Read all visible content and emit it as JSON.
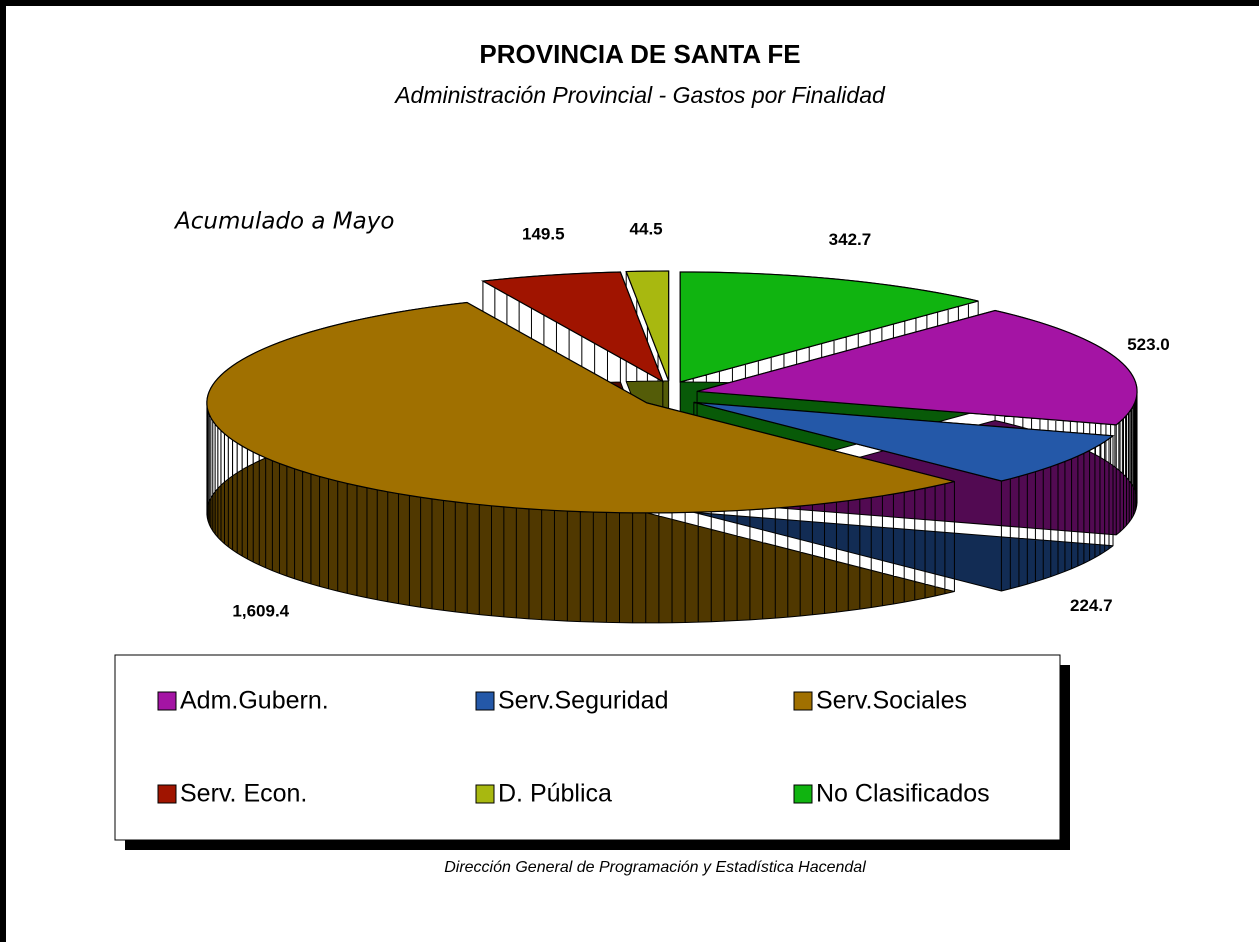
{
  "chart_data": {
    "type": "pie",
    "title": "PROVINCIA DE SANTA FE",
    "subtitle": "Administración Provincial - Gastos por Finalidad",
    "annotation": "Acumulado a Mayo",
    "source": "Dirección General de Programación y Estadística Hacendal",
    "categories": [
      "Adm.Gubern.",
      "Serv.Seguridad",
      "Serv.Sociales",
      "Serv. Econ.",
      "D. Pública",
      "No Clasificados"
    ],
    "values": [
      523.0,
      224.7,
      1609.4,
      149.5,
      44.5,
      342.7
    ],
    "value_labels": [
      "523.0",
      "224.7",
      "1,609.4",
      "149.5",
      "44.5",
      "342.7"
    ],
    "colors": [
      "#a414a4",
      "#2458a8",
      "#a07000",
      "#a01400",
      "#a8b810",
      "#10b410"
    ]
  }
}
